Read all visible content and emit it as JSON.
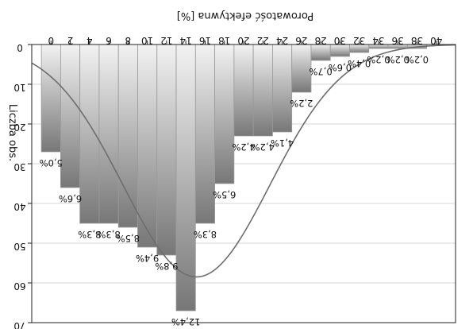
{
  "chart_data": {
    "type": "bar",
    "orientation": "flipped",
    "xlabel": "Porowatość efektywna [%]",
    "ylabel": "Liczba obs.",
    "xlim": [
      -2,
      42
    ],
    "ylim": [
      0,
      70
    ],
    "xticks": [
      "0",
      "2",
      "4",
      "6",
      "8",
      "10",
      "12",
      "14",
      "16",
      "18",
      "20",
      "22",
      "24",
      "26",
      "28",
      "30",
      "32",
      "34",
      "36",
      "38",
      "40"
    ],
    "yticks": [
      "0",
      "10",
      "20",
      "30",
      "40",
      "50",
      "60",
      "70"
    ],
    "bin_width": 2,
    "bars": [
      {
        "x": 0,
        "value": 27,
        "label": "5,0%"
      },
      {
        "x": 2,
        "value": 36,
        "label": "6,6%"
      },
      {
        "x": 4,
        "value": 45,
        "label": "8,3%"
      },
      {
        "x": 6,
        "value": 45,
        "label": "8,3%"
      },
      {
        "x": 8,
        "value": 46,
        "label": "8,5%"
      },
      {
        "x": 10,
        "value": 51,
        "label": "9,4%"
      },
      {
        "x": 12,
        "value": 53,
        "label": "9,8%"
      },
      {
        "x": 14,
        "value": 67,
        "label": "12,4%"
      },
      {
        "x": 16,
        "value": 45,
        "label": "8,3%"
      },
      {
        "x": 18,
        "value": 35,
        "label": "6,5%"
      },
      {
        "x": 20,
        "value": 23,
        "label": "4,2%"
      },
      {
        "x": 22,
        "value": 23,
        "label": "4,2%"
      },
      {
        "x": 24,
        "value": 22,
        "label": "4,1%"
      },
      {
        "x": 26,
        "value": 12,
        "label": "2,2%"
      },
      {
        "x": 28,
        "value": 4,
        "label": "0,7%"
      },
      {
        "x": 30,
        "value": 3,
        "label": "0,6%"
      },
      {
        "x": 32,
        "value": 2,
        "label": "0,4%"
      },
      {
        "x": 34,
        "value": 1,
        "label": "0,2%"
      },
      {
        "x": 36,
        "value": 1,
        "label": "0,2%"
      },
      {
        "x": 38,
        "value": 1,
        "label": "0,2%"
      }
    ],
    "fit_curve": {
      "type": "normal",
      "mean": 15.1,
      "sd": 7.6,
      "peak": 58.5
    },
    "grid": true,
    "colors": {
      "bar_top": "#f2f2f2",
      "bar_bottom": "#777777",
      "bar_edge": "#9a9a9a",
      "curve": "#6e6e6e",
      "grid": "#c8c8c8",
      "axis": "#222222"
    }
  }
}
